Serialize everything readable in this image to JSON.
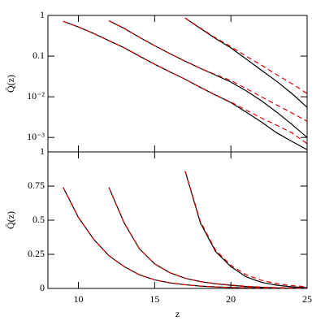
{
  "chart_data": [
    {
      "type": "line",
      "ylabel": "Q̄(z)",
      "yscale": "log",
      "xlim": [
        8,
        25
      ],
      "xticks": [
        10,
        15,
        20,
        25
      ],
      "ylim": [
        0.00044,
        1
      ],
      "yticks": [
        1,
        0.1,
        {
          "value": 0.01,
          "label": "10⁻²"
        },
        {
          "value": 0.001,
          "label": "10⁻³"
        }
      ],
      "series": [
        {
          "color": "#000000",
          "dash": false,
          "x": [
            9,
            10,
            11,
            12,
            13,
            14,
            15,
            16,
            17,
            18,
            19,
            20,
            21,
            22,
            23,
            24,
            25
          ],
          "values": [
            0.72,
            0.52,
            0.36,
            0.24,
            0.16,
            0.1,
            0.063,
            0.041,
            0.027,
            0.017,
            0.011,
            0.0072,
            0.0042,
            0.0024,
            0.0013,
            0.0008,
            0.0005
          ]
        },
        {
          "color": "#dd0000",
          "dash": true,
          "x": [
            9,
            10,
            11,
            12,
            13,
            14,
            15,
            16,
            17,
            18,
            19,
            20,
            21,
            22,
            23,
            24,
            25
          ],
          "values": [
            0.72,
            0.52,
            0.36,
            0.24,
            0.16,
            0.1,
            0.063,
            0.041,
            0.027,
            0.017,
            0.011,
            0.0074,
            0.0047,
            0.003,
            0.002,
            0.0013,
            0.0007
          ]
        },
        {
          "color": "#000000",
          "dash": false,
          "x": [
            12,
            13,
            14,
            15,
            16,
            17,
            18,
            19,
            20,
            21,
            22,
            23,
            24,
            25
          ],
          "values": [
            0.74,
            0.48,
            0.29,
            0.18,
            0.115,
            0.075,
            0.05,
            0.034,
            0.023,
            0.014,
            0.008,
            0.0042,
            0.0021,
            0.001
          ]
        },
        {
          "color": "#dd0000",
          "dash": true,
          "x": [
            12,
            13,
            14,
            15,
            16,
            17,
            18,
            19,
            20,
            21,
            22,
            23,
            24,
            25
          ],
          "values": [
            0.74,
            0.48,
            0.29,
            0.18,
            0.115,
            0.075,
            0.05,
            0.035,
            0.025,
            0.016,
            0.01,
            0.0063,
            0.004,
            0.0025
          ]
        },
        {
          "color": "#000000",
          "dash": false,
          "x": [
            17,
            18,
            19,
            20,
            21,
            22,
            23,
            24,
            25
          ],
          "values": [
            0.86,
            0.48,
            0.27,
            0.16,
            0.085,
            0.045,
            0.024,
            0.012,
            0.0055
          ]
        },
        {
          "color": "#dd0000",
          "dash": true,
          "x": [
            17,
            18,
            19,
            20,
            21,
            22,
            23,
            24,
            25
          ],
          "values": [
            0.86,
            0.49,
            0.28,
            0.17,
            0.1,
            0.06,
            0.035,
            0.021,
            0.012
          ]
        }
      ]
    },
    {
      "type": "line",
      "ylabel": "Q̄(z)",
      "xlabel": "z",
      "yscale": "linear",
      "xlim": [
        8,
        25
      ],
      "xticks": [
        10,
        15,
        20,
        25
      ],
      "ylim": [
        0,
        1
      ],
      "yticks": [
        0,
        0.25,
        0.5,
        0.75,
        1
      ],
      "series": [
        {
          "color": "#000000",
          "dash": false,
          "x": [
            9,
            10,
            11,
            12,
            13,
            14,
            15,
            16,
            17,
            18,
            19,
            20,
            21,
            22,
            23,
            24,
            25
          ],
          "values": [
            0.74,
            0.52,
            0.36,
            0.24,
            0.16,
            0.1,
            0.063,
            0.041,
            0.027,
            0.017,
            0.011,
            0.0072,
            0.0042,
            0.0024,
            0.0013,
            0.0008,
            0.0005
          ]
        },
        {
          "color": "#dd0000",
          "dash": true,
          "x": [
            9,
            10,
            11,
            12,
            13,
            14,
            15,
            16,
            17,
            18,
            19,
            20,
            21,
            22,
            23,
            24,
            25
          ],
          "values": [
            0.74,
            0.52,
            0.36,
            0.24,
            0.16,
            0.1,
            0.063,
            0.041,
            0.027,
            0.017,
            0.011,
            0.0074,
            0.0047,
            0.003,
            0.002,
            0.0013,
            0.0007
          ]
        },
        {
          "color": "#000000",
          "dash": false,
          "x": [
            12,
            13,
            14,
            15,
            16,
            17,
            18,
            19,
            20,
            21,
            22,
            23,
            24,
            25
          ],
          "values": [
            0.74,
            0.48,
            0.29,
            0.18,
            0.115,
            0.075,
            0.05,
            0.034,
            0.023,
            0.014,
            0.008,
            0.0042,
            0.0021,
            0.001
          ]
        },
        {
          "color": "#dd0000",
          "dash": true,
          "x": [
            12,
            13,
            14,
            15,
            16,
            17,
            18,
            19,
            20,
            21,
            22,
            23,
            24,
            25
          ],
          "values": [
            0.74,
            0.48,
            0.29,
            0.18,
            0.115,
            0.075,
            0.05,
            0.035,
            0.025,
            0.016,
            0.01,
            0.0063,
            0.004,
            0.0025
          ]
        },
        {
          "color": "#000000",
          "dash": false,
          "x": [
            17,
            18,
            19,
            20,
            21,
            22,
            23,
            24,
            25
          ],
          "values": [
            0.86,
            0.48,
            0.27,
            0.16,
            0.085,
            0.045,
            0.024,
            0.012,
            0.0055
          ]
        },
        {
          "color": "#dd0000",
          "dash": true,
          "x": [
            17,
            18,
            19,
            20,
            21,
            22,
            23,
            24,
            25
          ],
          "values": [
            0.86,
            0.49,
            0.28,
            0.17,
            0.1,
            0.06,
            0.035,
            0.021,
            0.012
          ]
        }
      ]
    }
  ]
}
